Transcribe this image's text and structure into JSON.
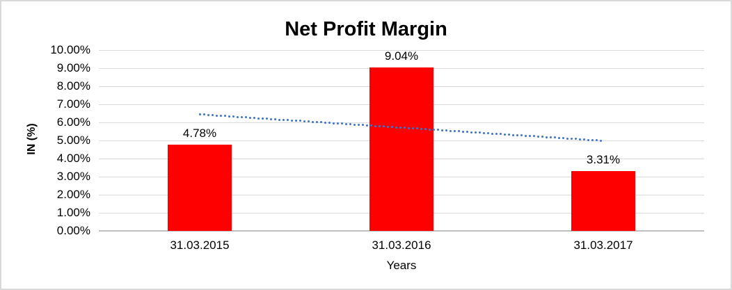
{
  "chart_data": {
    "type": "bar",
    "title": "Net Profit Margin",
    "xlabel": "Years",
    "ylabel": "IN (%)",
    "categories": [
      "31.03.2015",
      "31.03.2016",
      "31.03.2017"
    ],
    "values": [
      4.78,
      9.04,
      3.31
    ],
    "data_labels": [
      "4.78%",
      "9.04%",
      "3.31%"
    ],
    "y_ticks": [
      "0.00%",
      "1.00%",
      "2.00%",
      "3.00%",
      "4.00%",
      "5.00%",
      "6.00%",
      "7.00%",
      "8.00%",
      "9.00%",
      "10.00%"
    ],
    "ylim": [
      0,
      10
    ],
    "grid": true,
    "legend": false,
    "bar_color": "#ff0000",
    "gridline_color": "#d9d9d9",
    "trendline": {
      "type": "linear",
      "style": "dotted",
      "color": "#4472c4",
      "start_value": 6.44,
      "end_value": 4.98
    }
  }
}
